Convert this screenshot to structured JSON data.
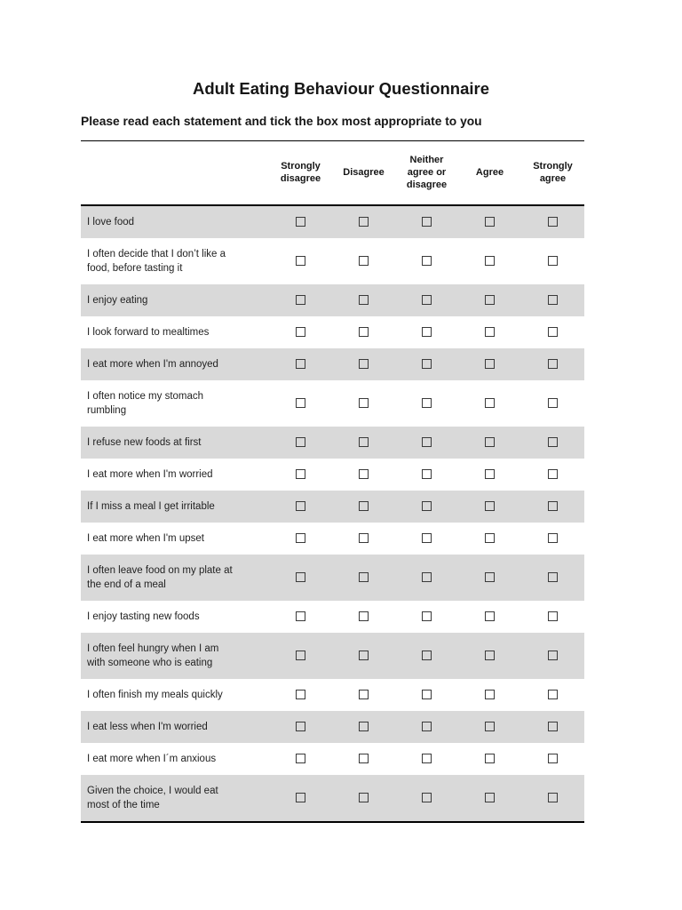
{
  "page": {
    "title": "Adult Eating Behaviour Questionnaire",
    "instruction": "Please read each statement and tick the box most appropriate to you"
  },
  "questionnaire": {
    "columns": [
      "Strongly disagree",
      "Disagree",
      "Neither agree or disagree",
      "Agree",
      "Strongly agree"
    ],
    "statements": [
      "I love food",
      "I often decide that I don’t like a food, before tasting it",
      "I enjoy eating",
      "I look forward to mealtimes",
      "I eat more when I'm annoyed",
      "I often notice my stomach rumbling",
      "I refuse new foods at first",
      "I eat more when I'm worried",
      "If I miss a meal I get irritable",
      "I eat more when I'm upset",
      "I often leave food on my plate at the end of a meal",
      "I enjoy tasting new foods",
      "I often feel hungry when I am with someone who is eating",
      "I often finish my meals quickly",
      "I eat less when I'm worried",
      "I eat more when I´m anxious",
      "Given the choice, I would eat most of the time"
    ],
    "checkbox_state": "unchecked",
    "colors": {
      "row_shaded": "#d9d9d9",
      "table_border": "#000000",
      "text": "#1f1f1f"
    }
  }
}
